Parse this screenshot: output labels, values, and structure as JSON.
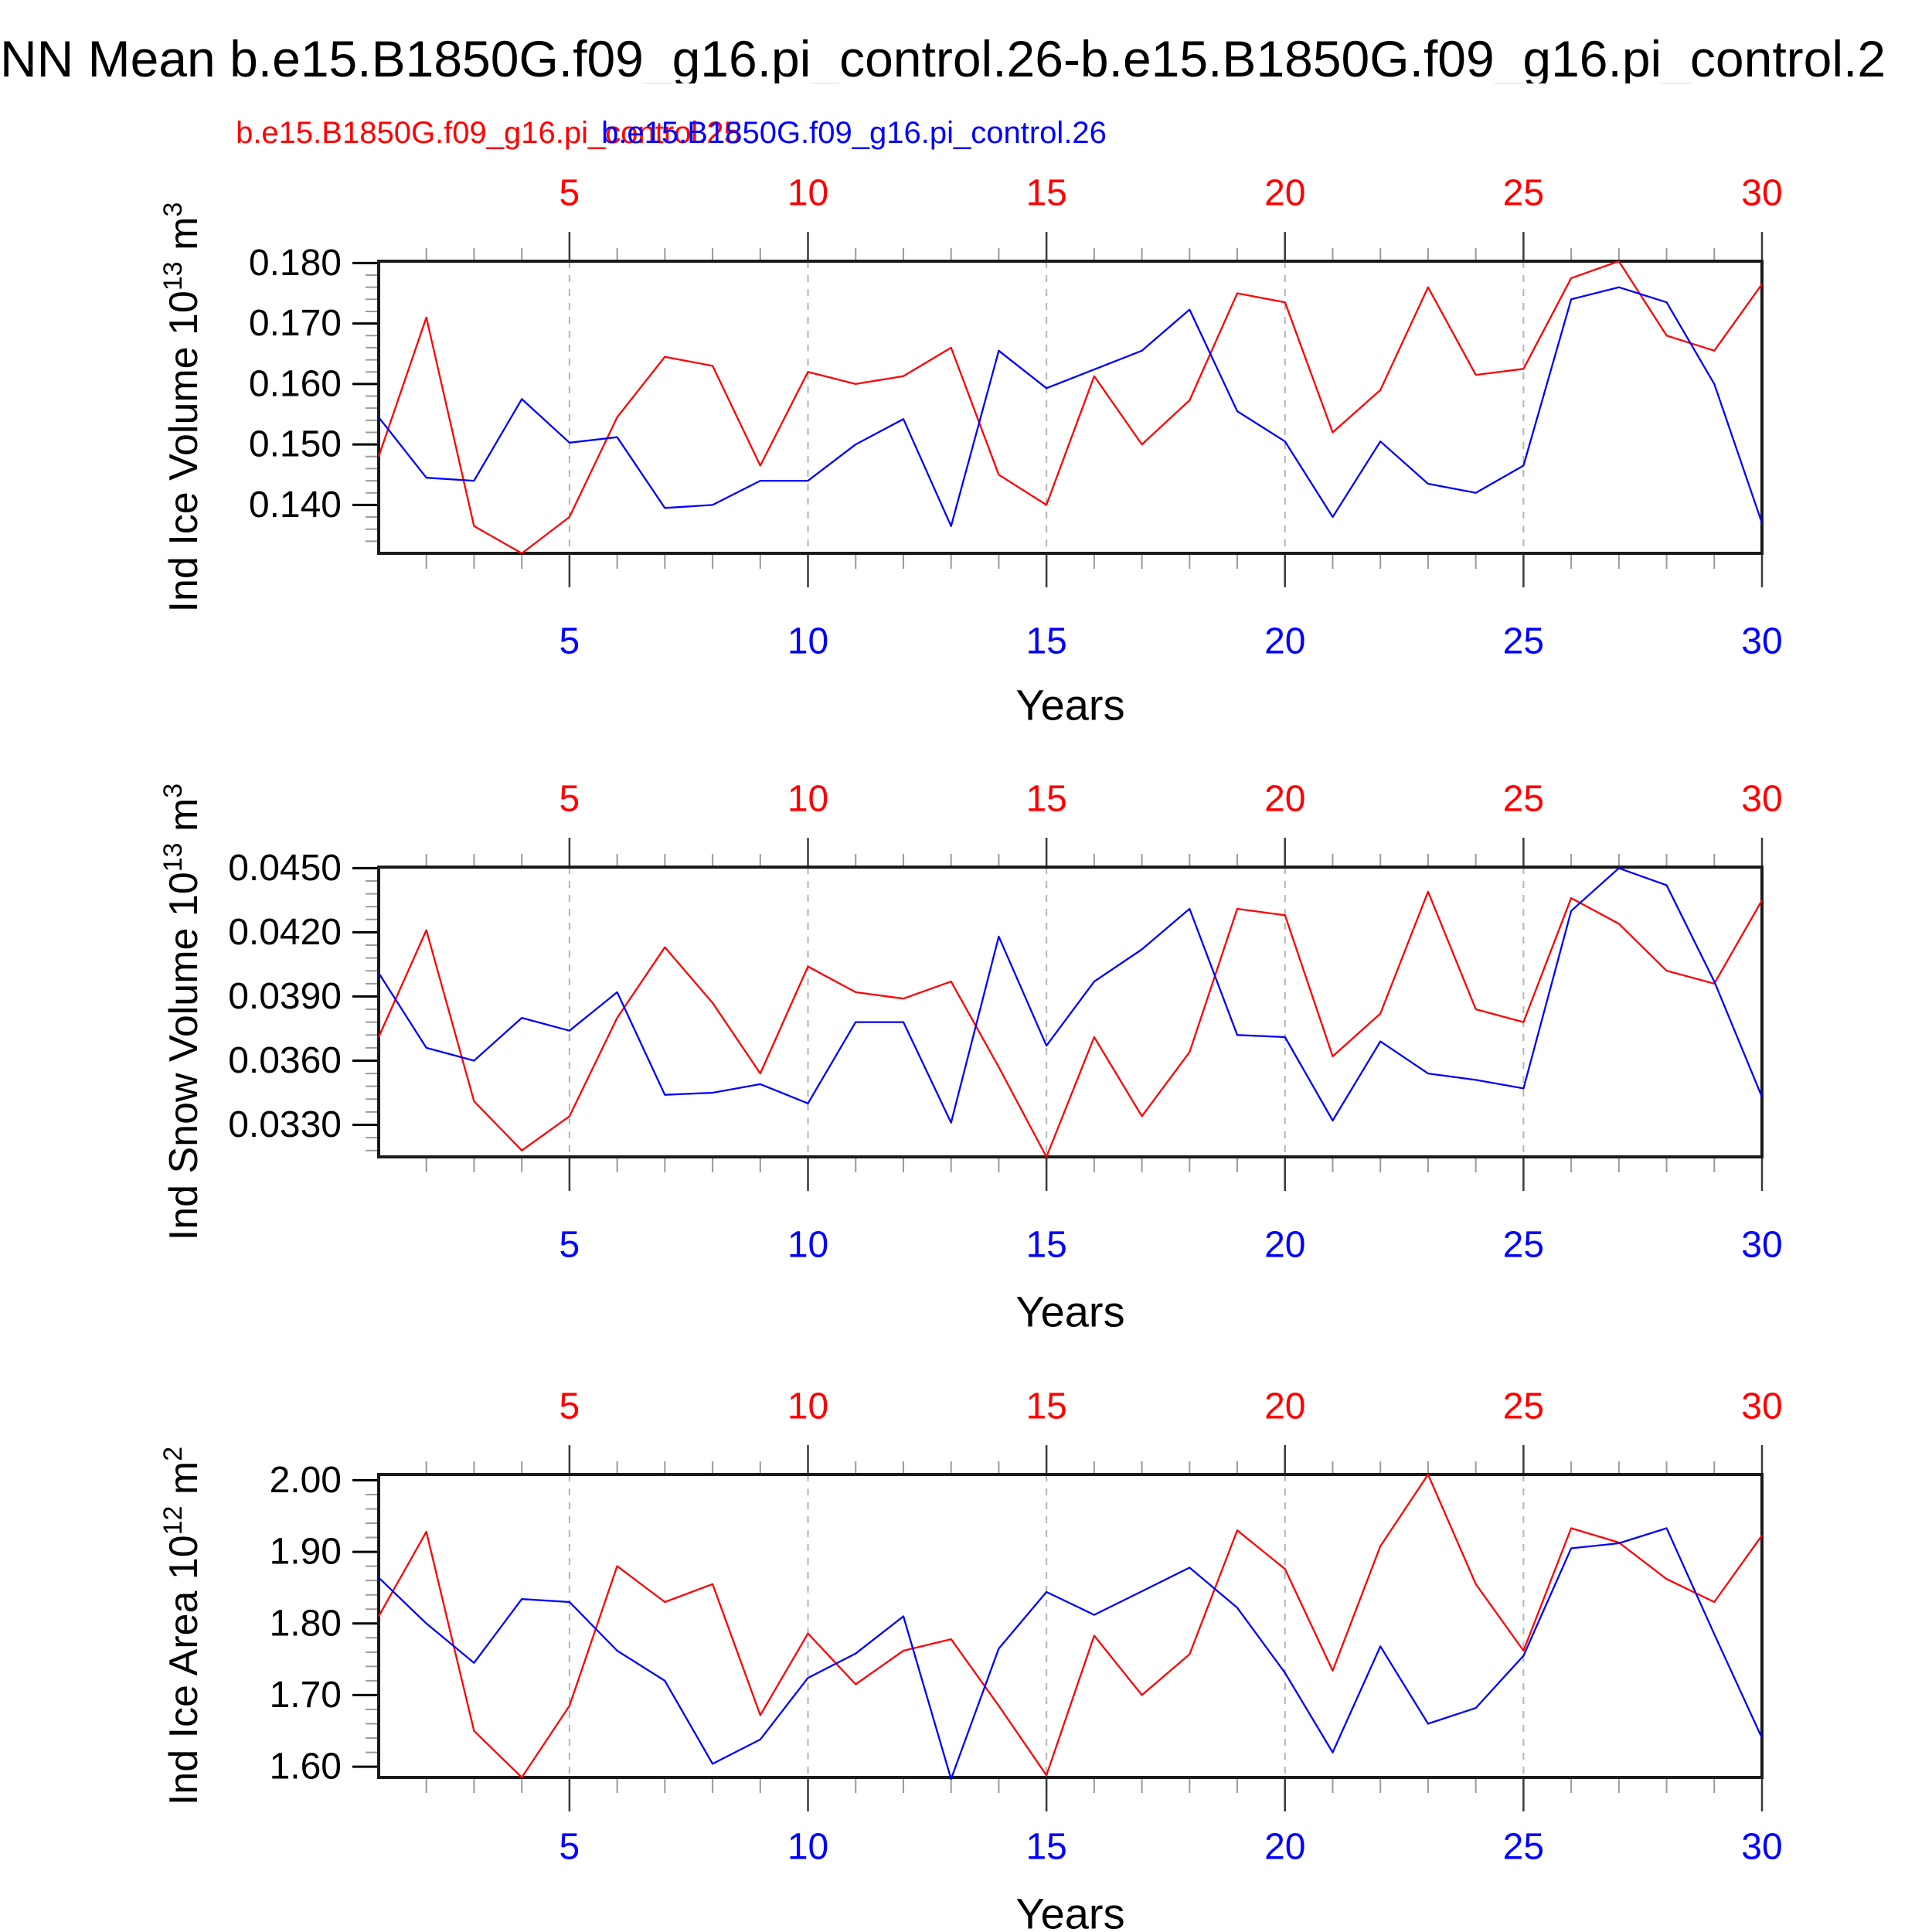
{
  "title": "NN Mean b.e15.B1850G.f09_g16.pi_control.26-b.e15.B1850G.f09_g16.pi_control.2",
  "legend": {
    "red_label": "b.e15.B1850G.f09_g16.pi_control.25",
    "blue_label": "b.e15.B1850G.f09_g16.pi_control.26",
    "red_color": "#ff0000",
    "blue_color": "#0000ff"
  },
  "axis_style": {
    "top_tick_label_color": "#ff0000",
    "bottom_tick_label_color": "#0000ff",
    "y_tick_label_color": "#000000"
  },
  "chart_data": [
    {
      "type": "line",
      "ylabel": "Ind Ice Volume 10^13^ m^3^",
      "yticks": [
        "0.180",
        "0.170",
        "0.160",
        "0.150",
        "0.140"
      ],
      "ytick_values": [
        0.18,
        0.17,
        0.16,
        0.15,
        0.14
      ],
      "ylim": [
        0.132,
        0.1803
      ],
      "y_minor_step": 0.002,
      "xlabel": "Years",
      "xticks": [
        5,
        10,
        15,
        20,
        25,
        30
      ],
      "xlim": [
        1,
        30
      ],
      "grid": "vertical-dashed",
      "series": [
        {
          "name": "b.e15.B1850G.f09_g16.pi_control.25",
          "color": "#ff0000",
          "values": [
            0.148,
            0.171,
            0.1365,
            0.132,
            0.138,
            0.1545,
            0.1645,
            0.163,
            0.1465,
            0.162,
            0.16,
            0.1613,
            0.166,
            0.145,
            0.14,
            0.1613,
            0.15,
            0.1573,
            0.175,
            0.1735,
            0.152,
            0.159,
            0.176,
            0.1615,
            0.1625,
            0.1775,
            0.1803,
            0.168,
            0.1655,
            0.1765
          ]
        },
        {
          "name": "b.e15.B1850G.f09_g16.pi_control.26",
          "color": "#0000ff",
          "values": [
            0.1545,
            0.1445,
            0.144,
            0.1575,
            0.1503,
            0.1512,
            0.1395,
            0.14,
            0.144,
            0.144,
            0.15,
            0.1542,
            0.1365,
            0.1655,
            0.1593,
            0.1624,
            0.1655,
            0.1723,
            0.1555,
            0.1505,
            0.138,
            0.1505,
            0.1435,
            0.142,
            0.1465,
            0.174,
            0.176,
            0.1735,
            0.16,
            0.137
          ]
        }
      ]
    },
    {
      "type": "line",
      "ylabel": "Ind Snow Volume 10^13^ m^3^",
      "yticks": [
        "0.0450",
        "0.0420",
        "0.0390",
        "0.0360",
        "0.0330"
      ],
      "ytick_values": [
        0.045,
        0.042,
        0.039,
        0.036,
        0.033
      ],
      "ylim": [
        0.0315,
        0.04505
      ],
      "y_minor_step": 0.0006,
      "xlabel": "Years",
      "xticks": [
        5,
        10,
        15,
        20,
        25,
        30
      ],
      "xlim": [
        1,
        30
      ],
      "grid": "vertical-dashed",
      "series": [
        {
          "name": "b.e15.B1850G.f09_g16.pi_control.25",
          "color": "#ff0000",
          "values": [
            0.0371,
            0.0421,
            0.0341,
            0.0318,
            0.0334,
            0.038,
            0.0413,
            0.0387,
            0.0354,
            0.0404,
            0.0392,
            0.0389,
            0.0397,
            0.0357,
            0.0315,
            0.0371,
            0.0334,
            0.0364,
            0.0431,
            0.0428,
            0.0362,
            0.0382,
            0.0439,
            0.0384,
            0.0378,
            0.0436,
            0.0424,
            0.0402,
            0.0396,
            0.0435
          ]
        },
        {
          "name": "b.e15.B1850G.f09_g16.pi_control.26",
          "color": "#0000ff",
          "values": [
            0.0401,
            0.0366,
            0.036,
            0.038,
            0.0374,
            0.0392,
            0.0344,
            0.0345,
            0.0349,
            0.034,
            0.0378,
            0.0378,
            0.0331,
            0.0418,
            0.0367,
            0.0397,
            0.0412,
            0.0431,
            0.0372,
            0.0371,
            0.0332,
            0.0369,
            0.0354,
            0.0351,
            0.0347,
            0.043,
            0.045,
            0.0442,
            0.0397,
            0.0343
          ]
        }
      ]
    },
    {
      "type": "line",
      "ylabel": "Ind Ice Area 10^12^ m^2^",
      "yticks": [
        "2.00",
        "1.90",
        "1.80",
        "1.70",
        "1.60"
      ],
      "ytick_values": [
        2.0,
        1.9,
        1.8,
        1.7,
        1.6
      ],
      "ylim": [
        1.585,
        2.008
      ],
      "y_minor_step": 0.02,
      "xlabel": "Years",
      "xticks": [
        5,
        10,
        15,
        20,
        25,
        30
      ],
      "xlim": [
        1,
        30
      ],
      "grid": "vertical-dashed",
      "series": [
        {
          "name": "b.e15.B1850G.f09_g16.pi_control.25",
          "color": "#ff0000",
          "values": [
            1.81,
            1.928,
            1.65,
            1.585,
            1.685,
            1.88,
            1.83,
            1.855,
            1.672,
            1.786,
            1.715,
            1.762,
            1.778,
            1.685,
            1.588,
            1.783,
            1.7,
            1.757,
            1.93,
            1.876,
            1.734,
            1.908,
            2.008,
            1.855,
            1.762,
            1.933,
            1.913,
            1.862,
            1.83,
            1.923
          ]
        },
        {
          "name": "b.e15.B1850G.f09_g16.pi_control.26",
          "color": "#0000ff",
          "values": [
            1.864,
            1.8,
            1.745,
            1.834,
            1.83,
            1.762,
            1.72,
            1.604,
            1.638,
            1.724,
            1.758,
            1.81,
            1.583,
            1.765,
            1.844,
            1.812,
            1.845,
            1.878,
            1.822,
            1.731,
            1.62,
            1.768,
            1.66,
            1.682,
            1.755,
            1.905,
            1.912,
            1.933,
            1.785,
            1.64
          ]
        }
      ]
    }
  ]
}
